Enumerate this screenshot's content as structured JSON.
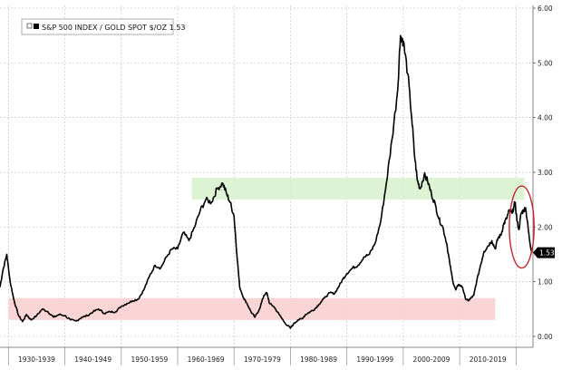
{
  "legend": {
    "label": "S&P 500 INDEX / GOLD SPOT $/OZ 1.53"
  },
  "chart_data": {
    "type": "line",
    "title": "",
    "xlabel": "",
    "ylabel": "",
    "legend_position": "top-left",
    "grid": true,
    "colors": {
      "line": "#000000",
      "green_band": "#d8f2cf",
      "red_band": "#f8d2d0",
      "last_value_tag": "#000000",
      "highlight_circle": "#c0262d"
    },
    "ylim": [
      -0.2,
      6.05
    ],
    "xlim": [
      1928.5,
      2023.0
    ],
    "y_ticks": [
      "0.00",
      "1.00",
      "2.00",
      "3.00",
      "4.00",
      "5.00",
      "6.00"
    ],
    "y_tick_values": [
      0,
      1,
      2,
      3,
      4,
      5,
      6
    ],
    "x_categories": [
      "1930-1939",
      "1940-1949",
      "1950-1959",
      "1960-1969",
      "1970-1979",
      "1980-1989",
      "1990-1999",
      "2000-2009",
      "2010-2019"
    ],
    "last_value": 1.53,
    "last_value_label": "1.53",
    "bands": [
      {
        "name": "green",
        "x": [
          1962.5,
          2021.5
        ],
        "y": [
          2.5,
          2.9
        ]
      },
      {
        "name": "red",
        "x": [
          1930.0,
          2016.3
        ],
        "y": [
          0.3,
          0.7
        ]
      }
    ],
    "highlight": {
      "x_center": 2021.0,
      "y_center": 2.0,
      "x_radius": 2.2,
      "y_radius": 0.75
    },
    "series": [
      {
        "values": [
          [
            1928.5,
            0.9
          ],
          [
            1929.0,
            1.2
          ],
          [
            1929.7,
            1.5
          ],
          [
            1930.3,
            1.0
          ],
          [
            1931.0,
            0.65
          ],
          [
            1931.8,
            0.38
          ],
          [
            1932.5,
            0.27
          ],
          [
            1933.2,
            0.4
          ],
          [
            1934.0,
            0.3
          ],
          [
            1935.0,
            0.38
          ],
          [
            1936.0,
            0.5
          ],
          [
            1937.0,
            0.45
          ],
          [
            1938.0,
            0.35
          ],
          [
            1939.0,
            0.4
          ],
          [
            1940.0,
            0.38
          ],
          [
            1941.0,
            0.3
          ],
          [
            1942.0,
            0.28
          ],
          [
            1943.0,
            0.35
          ],
          [
            1944.0,
            0.38
          ],
          [
            1945.0,
            0.45
          ],
          [
            1946.0,
            0.5
          ],
          [
            1947.0,
            0.42
          ],
          [
            1948.0,
            0.45
          ],
          [
            1949.0,
            0.45
          ],
          [
            1950.0,
            0.55
          ],
          [
            1951.0,
            0.6
          ],
          [
            1952.0,
            0.65
          ],
          [
            1953.0,
            0.68
          ],
          [
            1954.0,
            0.85
          ],
          [
            1955.0,
            1.1
          ],
          [
            1956.0,
            1.3
          ],
          [
            1957.0,
            1.25
          ],
          [
            1958.0,
            1.45
          ],
          [
            1959.0,
            1.6
          ],
          [
            1960.0,
            1.6
          ],
          [
            1961.0,
            1.9
          ],
          [
            1962.0,
            1.75
          ],
          [
            1963.0,
            2.0
          ],
          [
            1964.0,
            2.3
          ],
          [
            1965.0,
            2.5
          ],
          [
            1966.0,
            2.45
          ],
          [
            1967.0,
            2.7
          ],
          [
            1968.0,
            2.8
          ],
          [
            1968.7,
            2.6
          ],
          [
            1969.3,
            2.45
          ],
          [
            1970.0,
            2.2
          ],
          [
            1970.5,
            1.5
          ],
          [
            1971.0,
            0.9
          ],
          [
            1971.7,
            0.7
          ],
          [
            1972.3,
            0.6
          ],
          [
            1973.0,
            0.45
          ],
          [
            1973.7,
            0.35
          ],
          [
            1974.5,
            0.5
          ],
          [
            1975.3,
            0.75
          ],
          [
            1975.8,
            0.8
          ],
          [
            1976.3,
            0.6
          ],
          [
            1977.0,
            0.55
          ],
          [
            1978.0,
            0.4
          ],
          [
            1979.0,
            0.25
          ],
          [
            1980.0,
            0.15
          ],
          [
            1980.5,
            0.22
          ],
          [
            1981.3,
            0.3
          ],
          [
            1982.0,
            0.32
          ],
          [
            1982.7,
            0.4
          ],
          [
            1983.5,
            0.45
          ],
          [
            1984.3,
            0.5
          ],
          [
            1985.0,
            0.58
          ],
          [
            1986.0,
            0.7
          ],
          [
            1987.0,
            0.8
          ],
          [
            1987.8,
            0.78
          ],
          [
            1988.5,
            0.9
          ],
          [
            1989.3,
            1.05
          ],
          [
            1990.0,
            1.15
          ],
          [
            1991.0,
            1.25
          ],
          [
            1992.0,
            1.3
          ],
          [
            1993.0,
            1.45
          ],
          [
            1994.0,
            1.5
          ],
          [
            1995.0,
            1.7
          ],
          [
            1996.0,
            2.1
          ],
          [
            1997.0,
            2.8
          ],
          [
            1998.0,
            3.6
          ],
          [
            1999.0,
            4.5
          ],
          [
            1999.5,
            5.5
          ],
          [
            2000.0,
            5.4
          ],
          [
            2000.8,
            4.8
          ],
          [
            2001.5,
            4.0
          ],
          [
            2002.0,
            3.3
          ],
          [
            2002.5,
            2.85
          ],
          [
            2003.0,
            2.7
          ],
          [
            2003.7,
            2.95
          ],
          [
            2004.3,
            2.85
          ],
          [
            2005.0,
            2.6
          ],
          [
            2005.7,
            2.4
          ],
          [
            2006.3,
            2.15
          ],
          [
            2007.0,
            2.0
          ],
          [
            2007.7,
            1.7
          ],
          [
            2008.3,
            1.3
          ],
          [
            2008.8,
            1.0
          ],
          [
            2009.3,
            0.85
          ],
          [
            2009.8,
            0.95
          ],
          [
            2010.5,
            0.9
          ],
          [
            2011.0,
            0.7
          ],
          [
            2011.5,
            0.65
          ],
          [
            2012.0,
            0.7
          ],
          [
            2012.5,
            0.75
          ],
          [
            2013.0,
            1.0
          ],
          [
            2013.7,
            1.3
          ],
          [
            2014.3,
            1.55
          ],
          [
            2015.0,
            1.65
          ],
          [
            2015.7,
            1.75
          ],
          [
            2016.3,
            1.6
          ],
          [
            2016.8,
            1.8
          ],
          [
            2017.3,
            1.85
          ],
          [
            2017.8,
            2.05
          ],
          [
            2018.3,
            2.15
          ],
          [
            2018.8,
            2.3
          ],
          [
            2019.3,
            2.25
          ],
          [
            2019.8,
            2.45
          ],
          [
            2020.2,
            2.1
          ],
          [
            2020.5,
            1.95
          ],
          [
            2020.9,
            2.25
          ],
          [
            2021.3,
            2.3
          ],
          [
            2021.7,
            2.35
          ],
          [
            2022.0,
            2.1
          ],
          [
            2022.4,
            1.75
          ],
          [
            2022.8,
            1.53
          ]
        ]
      }
    ]
  }
}
